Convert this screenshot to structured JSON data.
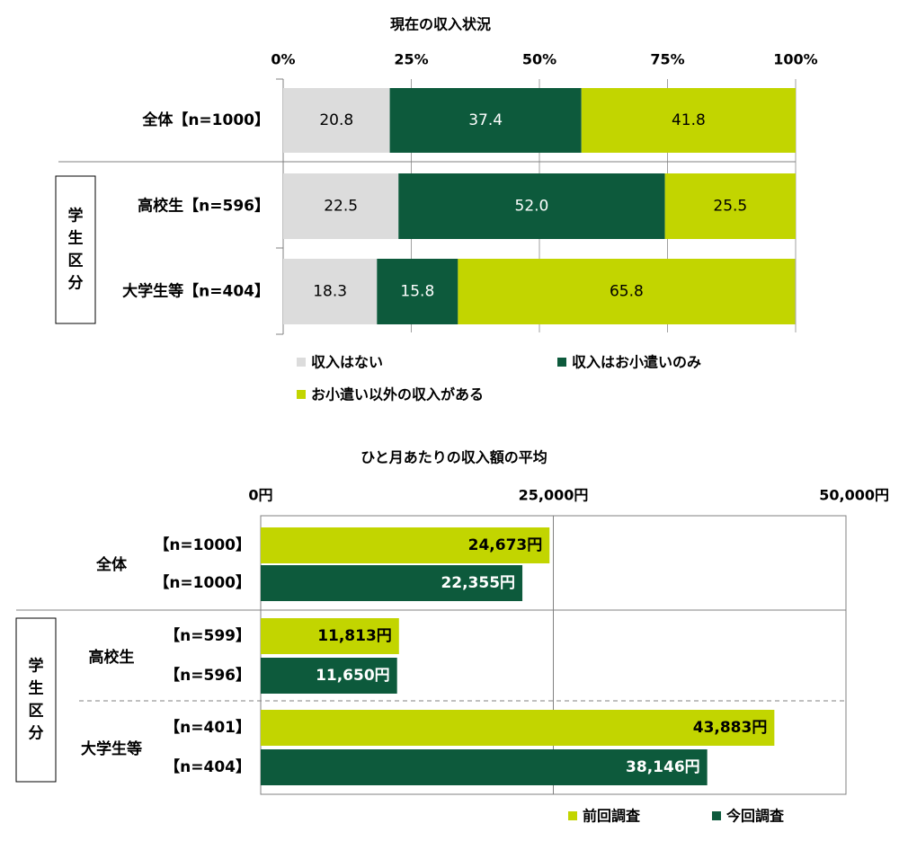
{
  "colors": {
    "none": "#dcdcdc",
    "allowance_only": "#0d5a3c",
    "other": "#c2d500",
    "previous": "#c2d500",
    "current": "#0d5a3c"
  },
  "student_group_label": "学生区分",
  "chart_data": [
    {
      "type": "bar",
      "stacked": true,
      "orientation": "horizontal",
      "title": "現在の収入状況",
      "x_ticks": [
        "0%",
        "25%",
        "50%",
        "75%",
        "100%"
      ],
      "xlim": [
        0,
        100
      ],
      "categories": [
        "全体【n=1000】",
        "高校生【n=596】",
        "大学生等【n=404】"
      ],
      "series": [
        {
          "name": "収入はない",
          "values": [
            20.8,
            22.5,
            18.3
          ]
        },
        {
          "name": "収入はお小遣いのみ",
          "values": [
            37.4,
            52.0,
            15.8
          ]
        },
        {
          "name": "お小遣い以外の収入がある",
          "values": [
            41.8,
            25.5,
            65.8
          ]
        }
      ],
      "value_labels": [
        [
          "20.8",
          "22.5",
          "18.3"
        ],
        [
          "37.4",
          "52.0",
          "15.8"
        ],
        [
          "41.8",
          "25.5",
          "65.8"
        ]
      ]
    },
    {
      "type": "bar",
      "orientation": "horizontal",
      "title": "ひと月あたりの収入額の平均",
      "x_ticks": [
        "0円",
        "25,000円",
        "50,000円"
      ],
      "xlim": [
        0,
        50000
      ],
      "groups": [
        "全体",
        "高校生",
        "大学生等"
      ],
      "bars": [
        {
          "label": "【n=1000】",
          "series": "前回調査",
          "value": 24673,
          "text": "24,673円"
        },
        {
          "label": "【n=1000】",
          "series": "今回調査",
          "value": 22355,
          "text": "22,355円"
        },
        {
          "label": "【n=599】",
          "series": "前回調査",
          "value": 11813,
          "text": "11,813円"
        },
        {
          "label": "【n=596】",
          "series": "今回調査",
          "value": 11650,
          "text": "11,650円"
        },
        {
          "label": "【n=401】",
          "series": "前回調査",
          "value": 43883,
          "text": "43,883円"
        },
        {
          "label": "【n=404】",
          "series": "今回調査",
          "value": 38146,
          "text": "38,146円"
        }
      ],
      "legend": [
        "前回調査",
        "今回調査"
      ]
    }
  ]
}
